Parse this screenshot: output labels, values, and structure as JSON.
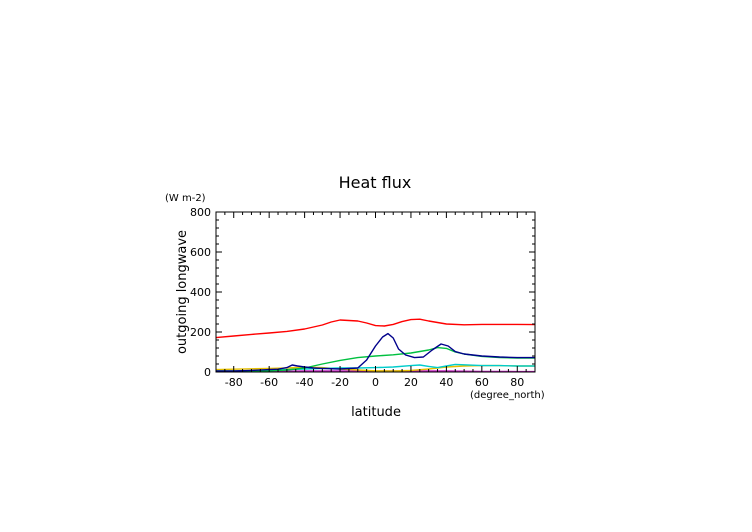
{
  "chart_data": {
    "type": "line",
    "title": "Heat flux",
    "xlabel": "latitude",
    "ylabel": "outgoing longwave",
    "x_units": "(degree_north)",
    "y_units": "(W m-2)",
    "xlim": [
      -90,
      90
    ],
    "ylim": [
      0,
      800
    ],
    "xticks": [
      -80,
      -60,
      -40,
      -20,
      0,
      20,
      40,
      60,
      80
    ],
    "yticks": [
      0,
      200,
      400,
      600,
      800
    ],
    "grid": false,
    "legend": "none",
    "series": [
      {
        "color": "#ff0000",
        "points": [
          [
            -90,
            172
          ],
          [
            -80,
            180
          ],
          [
            -70,
            188
          ],
          [
            -60,
            195
          ],
          [
            -50,
            203
          ],
          [
            -40,
            215
          ],
          [
            -30,
            235
          ],
          [
            -25,
            250
          ],
          [
            -20,
            260
          ],
          [
            -10,
            255
          ],
          [
            -5,
            245
          ],
          [
            0,
            232
          ],
          [
            5,
            230
          ],
          [
            10,
            238
          ],
          [
            15,
            252
          ],
          [
            20,
            262
          ],
          [
            25,
            264
          ],
          [
            30,
            255
          ],
          [
            40,
            240
          ],
          [
            50,
            236
          ],
          [
            60,
            238
          ],
          [
            70,
            238
          ],
          [
            80,
            238
          ],
          [
            90,
            237
          ]
        ]
      },
      {
        "color": "#00008b",
        "points": [
          [
            -90,
            5
          ],
          [
            -80,
            5
          ],
          [
            -70,
            8
          ],
          [
            -60,
            12
          ],
          [
            -55,
            14
          ],
          [
            -50,
            22
          ],
          [
            -47,
            35
          ],
          [
            -44,
            30
          ],
          [
            -40,
            25
          ],
          [
            -35,
            20
          ],
          [
            -30,
            18
          ],
          [
            -20,
            15
          ],
          [
            -10,
            20
          ],
          [
            -5,
            60
          ],
          [
            0,
            130
          ],
          [
            4,
            175
          ],
          [
            7,
            192
          ],
          [
            10,
            170
          ],
          [
            13,
            115
          ],
          [
            17,
            85
          ],
          [
            22,
            72
          ],
          [
            27,
            75
          ],
          [
            32,
            110
          ],
          [
            37,
            140
          ],
          [
            41,
            130
          ],
          [
            45,
            102
          ],
          [
            50,
            90
          ],
          [
            60,
            80
          ],
          [
            70,
            75
          ],
          [
            80,
            72
          ],
          [
            90,
            72
          ]
        ]
      },
      {
        "color": "#00c040",
        "points": [
          [
            -90,
            5
          ],
          [
            -80,
            5
          ],
          [
            -70,
            5
          ],
          [
            -60,
            6
          ],
          [
            -50,
            10
          ],
          [
            -40,
            20
          ],
          [
            -30,
            40
          ],
          [
            -20,
            58
          ],
          [
            -10,
            72
          ],
          [
            0,
            80
          ],
          [
            10,
            86
          ],
          [
            20,
            95
          ],
          [
            30,
            110
          ],
          [
            35,
            122
          ],
          [
            40,
            118
          ],
          [
            45,
            100
          ],
          [
            50,
            90
          ],
          [
            60,
            78
          ],
          [
            70,
            72
          ],
          [
            80,
            70
          ],
          [
            90,
            70
          ]
        ]
      },
      {
        "color": "#00cccc",
        "points": [
          [
            -90,
            3
          ],
          [
            -80,
            4
          ],
          [
            -70,
            5
          ],
          [
            -60,
            8
          ],
          [
            -50,
            12
          ],
          [
            -40,
            15
          ],
          [
            -30,
            18
          ],
          [
            -20,
            20
          ],
          [
            -10,
            20
          ],
          [
            0,
            22
          ],
          [
            10,
            25
          ],
          [
            20,
            32
          ],
          [
            25,
            35
          ],
          [
            30,
            28
          ],
          [
            35,
            22
          ],
          [
            40,
            30
          ],
          [
            45,
            38
          ],
          [
            50,
            36
          ],
          [
            60,
            32
          ],
          [
            70,
            32
          ],
          [
            80,
            30
          ],
          [
            90,
            30
          ]
        ]
      },
      {
        "color": "#e6c000",
        "points": [
          [
            -90,
            12
          ],
          [
            -80,
            14
          ],
          [
            -70,
            16
          ],
          [
            -60,
            18
          ],
          [
            -50,
            20
          ],
          [
            -40,
            24
          ],
          [
            -30,
            22
          ],
          [
            -20,
            15
          ],
          [
            -10,
            10
          ],
          [
            0,
            6
          ],
          [
            10,
            5
          ],
          [
            20,
            8
          ],
          [
            30,
            15
          ],
          [
            40,
            25
          ],
          [
            50,
            30
          ],
          [
            60,
            32
          ],
          [
            70,
            32
          ],
          [
            80,
            30
          ],
          [
            90,
            30
          ]
        ]
      },
      {
        "color": "#c020c0",
        "points": [
          [
            -90,
            2
          ],
          [
            -80,
            2
          ],
          [
            -70,
            3
          ],
          [
            -60,
            3
          ],
          [
            -50,
            4
          ],
          [
            -40,
            5
          ],
          [
            -30,
            5
          ],
          [
            -20,
            5
          ],
          [
            -10,
            5
          ],
          [
            0,
            5
          ],
          [
            10,
            5
          ],
          [
            20,
            5
          ],
          [
            30,
            5
          ],
          [
            40,
            5
          ],
          [
            50,
            4
          ],
          [
            60,
            3
          ],
          [
            70,
            3
          ],
          [
            80,
            2
          ],
          [
            90,
            2
          ]
        ]
      }
    ]
  }
}
